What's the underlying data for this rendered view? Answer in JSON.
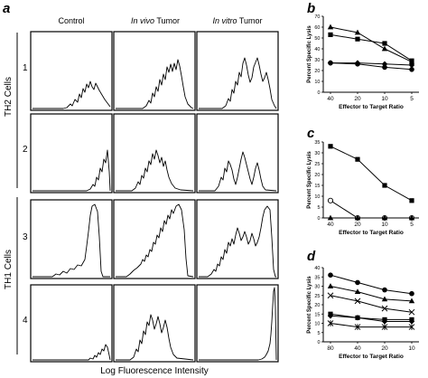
{
  "figure": {
    "panel_labels": {
      "a": "a",
      "b": "b",
      "c": "c",
      "d": "d"
    },
    "panel_a": {
      "column_headers": [
        {
          "lead": "",
          "rest": "Control"
        },
        {
          "lead": "In vivo",
          "rest": " Tumor"
        },
        {
          "lead": "In vitro",
          "rest": " Tumor"
        }
      ],
      "row_labels": [
        "1",
        "2",
        "3",
        "4"
      ],
      "group_labels": [
        "TH2 Cells",
        "TH1 Cells"
      ],
      "xlabel": "Log Fluorescence Intensity"
    }
  },
  "chart_data": [
    {
      "panel": "b",
      "type": "line",
      "categories": [
        "40",
        "20",
        "10",
        "5"
      ],
      "xlabel": "Effector to Target Ratio",
      "ylabel": "Percent Specific Lysis",
      "ylim": [
        0,
        70
      ],
      "yticks": [
        "0",
        "10",
        "20",
        "30",
        "40",
        "50",
        "60",
        "70"
      ],
      "series": [
        {
          "marker": "triangle",
          "values": [
            60,
            55,
            40,
            28
          ]
        },
        {
          "marker": "square",
          "values": [
            53,
            49,
            45,
            29
          ]
        },
        {
          "marker": "diamond",
          "values": [
            27,
            27,
            26,
            25
          ]
        },
        {
          "marker": "circle",
          "values": [
            27,
            26,
            23,
            21
          ]
        }
      ]
    },
    {
      "panel": "c",
      "type": "line",
      "categories": [
        "40",
        "20",
        "10",
        "5"
      ],
      "xlabel": "Effector to Target Ratio",
      "ylabel": "Percent Specific Lysis",
      "ylim": [
        0,
        35
      ],
      "yticks": [
        "0",
        "5",
        "10",
        "15",
        "20",
        "25",
        "30",
        "35"
      ],
      "series": [
        {
          "marker": "square",
          "values": [
            33,
            27,
            15,
            8
          ]
        },
        {
          "marker": "open-circle",
          "values": [
            8,
            0,
            0,
            0
          ]
        },
        {
          "marker": "triangle",
          "values": [
            0,
            0,
            0,
            0
          ]
        }
      ]
    },
    {
      "panel": "d",
      "type": "line",
      "categories": [
        "80",
        "40",
        "20",
        "10"
      ],
      "xlabel": "Effector to Target Ratio",
      "ylabel": "Percent Specific Lysis",
      "ylim": [
        0,
        40
      ],
      "yticks": [
        "0",
        "5",
        "10",
        "15",
        "20",
        "25",
        "30",
        "35",
        "40"
      ],
      "series": [
        {
          "marker": "circle",
          "values": [
            36,
            32,
            28,
            26
          ]
        },
        {
          "marker": "triangle",
          "values": [
            30,
            27,
            23,
            22
          ]
        },
        {
          "marker": "x",
          "values": [
            25,
            22,
            18,
            16
          ]
        },
        {
          "marker": "square",
          "values": [
            15,
            13,
            12,
            12
          ]
        },
        {
          "marker": "diamond",
          "values": [
            14,
            13,
            11,
            11
          ]
        },
        {
          "marker": "asterisk",
          "values": [
            10,
            8,
            8,
            8
          ]
        }
      ]
    }
  ]
}
